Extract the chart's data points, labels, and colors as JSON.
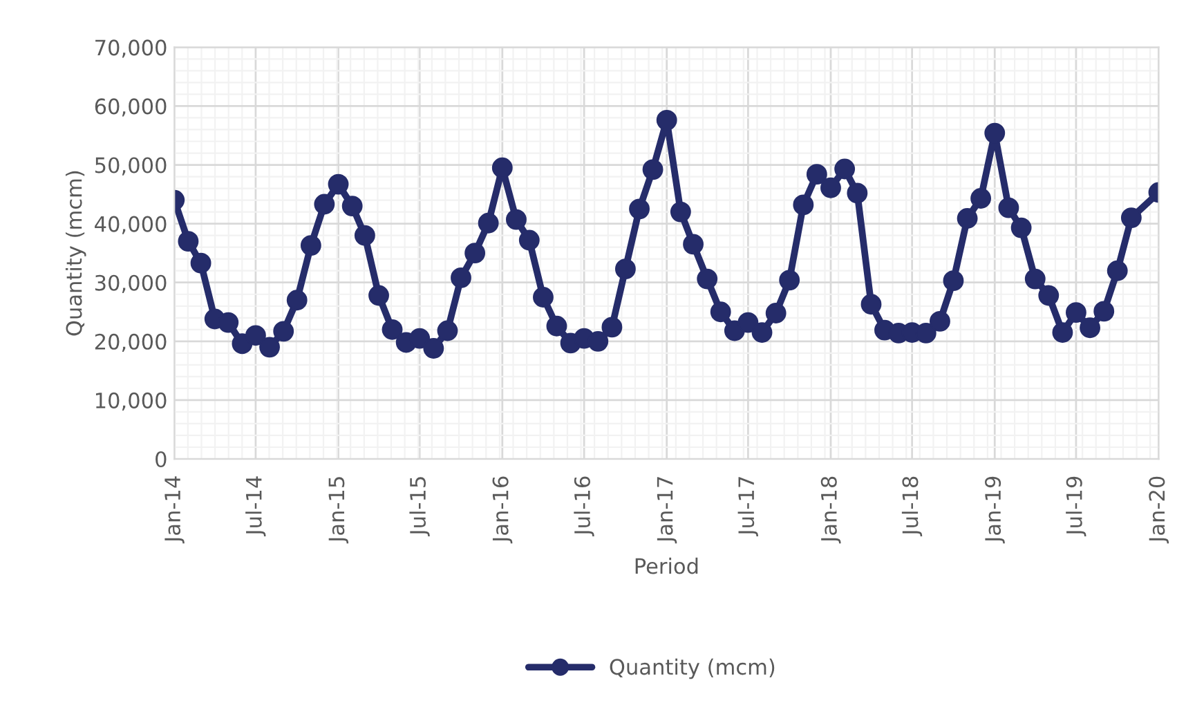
{
  "chart_data": {
    "type": "line",
    "xlabel": "Period",
    "ylabel": "Quantity (mcm)",
    "x": [
      "2014-01",
      "2014-02",
      "2014-03",
      "2014-04",
      "2014-05",
      "2014-06",
      "2014-07",
      "2014-08",
      "2014-09",
      "2014-10",
      "2014-11",
      "2014-12",
      "2015-01",
      "2015-02",
      "2015-03",
      "2015-04",
      "2015-05",
      "2015-06",
      "2015-07",
      "2015-08",
      "2015-09",
      "2015-10",
      "2015-11",
      "2015-12",
      "2016-01",
      "2016-02",
      "2016-03",
      "2016-04",
      "2016-05",
      "2016-06",
      "2016-07",
      "2016-08",
      "2016-09",
      "2016-10",
      "2016-11",
      "2016-12",
      "2017-01",
      "2017-02",
      "2017-03",
      "2017-04",
      "2017-05",
      "2017-06",
      "2017-07",
      "2017-08",
      "2017-09",
      "2017-10",
      "2017-11",
      "2017-12",
      "2018-01",
      "2018-02",
      "2018-03",
      "2018-04",
      "2018-05",
      "2018-06",
      "2018-07",
      "2018-08",
      "2018-09",
      "2018-10",
      "2018-11",
      "2018-12",
      "2019-01",
      "2019-02",
      "2019-03",
      "2019-04",
      "2019-05",
      "2019-06",
      "2019-07",
      "2019-08",
      "2019-09",
      "2019-10",
      "2019-11",
      "2020-01"
    ],
    "series": [
      {
        "name": "Quantity (mcm)",
        "color": "#252c6a",
        "values": [
          44000,
          37000,
          33300,
          23800,
          23200,
          19600,
          21000,
          19000,
          21700,
          27000,
          36300,
          43300,
          46700,
          43000,
          38000,
          27800,
          22000,
          19800,
          20500,
          18800,
          21800,
          30800,
          35000,
          40100,
          49500,
          40700,
          37200,
          27500,
          22600,
          19700,
          20500,
          20000,
          22400,
          32300,
          42500,
          49200,
          57600,
          42000,
          36500,
          30600,
          25000,
          21800,
          23200,
          21500,
          24800,
          30400,
          43200,
          48400,
          46100,
          49300,
          45200,
          26300,
          21900,
          21400,
          21500,
          21400,
          23400,
          30300,
          40900,
          44300,
          55400,
          42700,
          39300,
          30600,
          27800,
          21500,
          24900,
          22300,
          25100,
          32000,
          41000,
          45300
        ]
      }
    ],
    "xlim": [
      "2014-01",
      "2020-01"
    ],
    "xticks": [
      {
        "value": "2014-01",
        "label": "Jan-14"
      },
      {
        "value": "2014-07",
        "label": "Jul-14"
      },
      {
        "value": "2015-01",
        "label": "Jan-15"
      },
      {
        "value": "2015-07",
        "label": "Jul-15"
      },
      {
        "value": "2016-01",
        "label": "Jan-16"
      },
      {
        "value": "2016-07",
        "label": "Jul-16"
      },
      {
        "value": "2017-01",
        "label": "Jan-17"
      },
      {
        "value": "2017-07",
        "label": "Jul-17"
      },
      {
        "value": "2018-01",
        "label": "Jan-18"
      },
      {
        "value": "2018-07",
        "label": "Jul-18"
      },
      {
        "value": "2019-01",
        "label": "Jan-19"
      },
      {
        "value": "2019-07",
        "label": "Jul-19"
      },
      {
        "value": "2020-01",
        "label": "Jan-20"
      }
    ],
    "ylim": [
      0,
      70000
    ],
    "yticks": [
      {
        "value": 0,
        "label": "0"
      },
      {
        "value": 10000,
        "label": "10,000"
      },
      {
        "value": 20000,
        "label": "20,000"
      },
      {
        "value": 30000,
        "label": "30,000"
      },
      {
        "value": 40000,
        "label": "40,000"
      },
      {
        "value": 50000,
        "label": "50,000"
      },
      {
        "value": 60000,
        "label": "60,000"
      },
      {
        "value": 70000,
        "label": "70,000"
      }
    ],
    "grid": true,
    "legend": "bottom",
    "marker": "circle",
    "line_style": "solid"
  }
}
